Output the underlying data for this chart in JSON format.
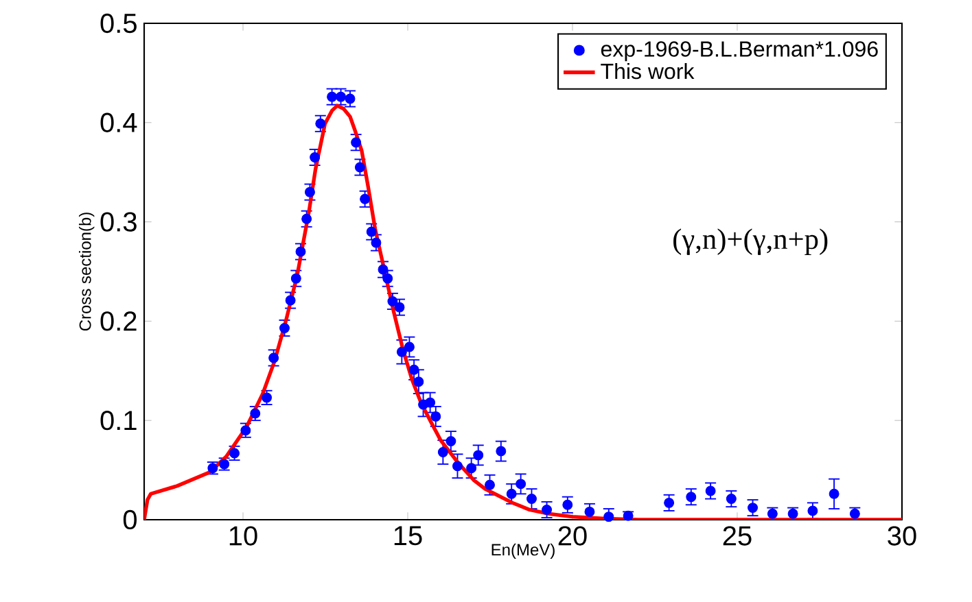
{
  "chart_data": {
    "type": "scatter",
    "xlabel": "En(MeV)",
    "ylabel": "Cross section(b)",
    "xlim": [
      7,
      30
    ],
    "ylim": [
      0,
      0.5
    ],
    "xticks": [
      10,
      15,
      20,
      25,
      30
    ],
    "yticks": [
      0,
      0.1,
      0.2,
      0.3,
      0.4,
      0.5
    ],
    "legend": "top right",
    "annotations": [
      "(γ,n)+(γ,n+p)"
    ],
    "series": [
      {
        "name": "exp-1969-B.L.Berman*1.096",
        "marker": "circle",
        "color": "#0000ff",
        "x": [
          9.08,
          9.43,
          9.74,
          10.08,
          10.37,
          10.72,
          10.93,
          11.26,
          11.44,
          11.61,
          11.75,
          11.93,
          12.03,
          12.18,
          12.35,
          12.7,
          12.97,
          13.25,
          13.43,
          13.55,
          13.7,
          13.9,
          14.04,
          14.25,
          14.39,
          14.54,
          14.75,
          14.82,
          15.05,
          15.19,
          15.33,
          15.47,
          15.68,
          15.85,
          16.07,
          16.31,
          16.51,
          16.93,
          17.14,
          17.49,
          17.83,
          18.15,
          18.43,
          18.76,
          19.22,
          19.85,
          20.52,
          21.1,
          21.69,
          22.93,
          23.6,
          24.19,
          24.82,
          25.47,
          26.07,
          26.69,
          27.29,
          27.94,
          28.57
        ],
        "values": [
          0.052,
          0.056,
          0.067,
          0.09,
          0.107,
          0.123,
          0.163,
          0.193,
          0.221,
          0.243,
          0.27,
          0.303,
          0.33,
          0.365,
          0.399,
          0.426,
          0.426,
          0.424,
          0.38,
          0.355,
          0.323,
          0.29,
          0.279,
          0.252,
          0.243,
          0.22,
          0.214,
          0.169,
          0.174,
          0.151,
          0.139,
          0.116,
          0.118,
          0.104,
          0.068,
          0.079,
          0.054,
          0.052,
          0.065,
          0.035,
          0.069,
          0.026,
          0.036,
          0.021,
          0.01,
          0.015,
          0.008,
          0.003,
          0.004,
          0.017,
          0.023,
          0.029,
          0.021,
          0.012,
          0.006,
          0.006,
          0.009,
          0.026,
          0.006
        ],
        "errors": [
          0.006,
          0.006,
          0.007,
          0.007,
          0.007,
          0.007,
          0.008,
          0.008,
          0.008,
          0.008,
          0.008,
          0.008,
          0.008,
          0.008,
          0.008,
          0.008,
          0.008,
          0.008,
          0.008,
          0.008,
          0.008,
          0.008,
          0.008,
          0.008,
          0.008,
          0.008,
          0.008,
          0.012,
          0.01,
          0.01,
          0.012,
          0.012,
          0.01,
          0.01,
          0.012,
          0.01,
          0.012,
          0.01,
          0.01,
          0.01,
          0.01,
          0.01,
          0.01,
          0.01,
          0.008,
          0.008,
          0.008,
          0.008,
          0.004,
          0.008,
          0.008,
          0.008,
          0.008,
          0.008,
          0.006,
          0.006,
          0.008,
          0.015,
          0.006
        ]
      },
      {
        "name": "This work",
        "type": "line",
        "marker": "none",
        "color": "#ff0000",
        "x": [
          7.0,
          7.1,
          7.2,
          8.0,
          9.0,
          9.5,
          10.1,
          10.6,
          10.96,
          11.3,
          11.65,
          12.0,
          12.2,
          12.49,
          12.7,
          12.86,
          13.05,
          13.25,
          13.4,
          13.6,
          13.8,
          14.01,
          14.3,
          14.57,
          14.85,
          15.13,
          15.4,
          15.68,
          16.0,
          16.51,
          17.0,
          17.35,
          18.18,
          18.7,
          19.29,
          20.0,
          21.0,
          22.0,
          30.0
        ],
        "values": [
          0.0,
          0.02,
          0.026,
          0.034,
          0.048,
          0.064,
          0.093,
          0.127,
          0.16,
          0.2,
          0.247,
          0.31,
          0.353,
          0.399,
          0.412,
          0.417,
          0.414,
          0.406,
          0.392,
          0.372,
          0.335,
          0.293,
          0.25,
          0.21,
          0.172,
          0.141,
          0.118,
          0.1,
          0.08,
          0.058,
          0.04,
          0.031,
          0.017,
          0.01,
          0.006,
          0.003,
          0.001,
          0.0,
          0.0
        ]
      }
    ]
  }
}
